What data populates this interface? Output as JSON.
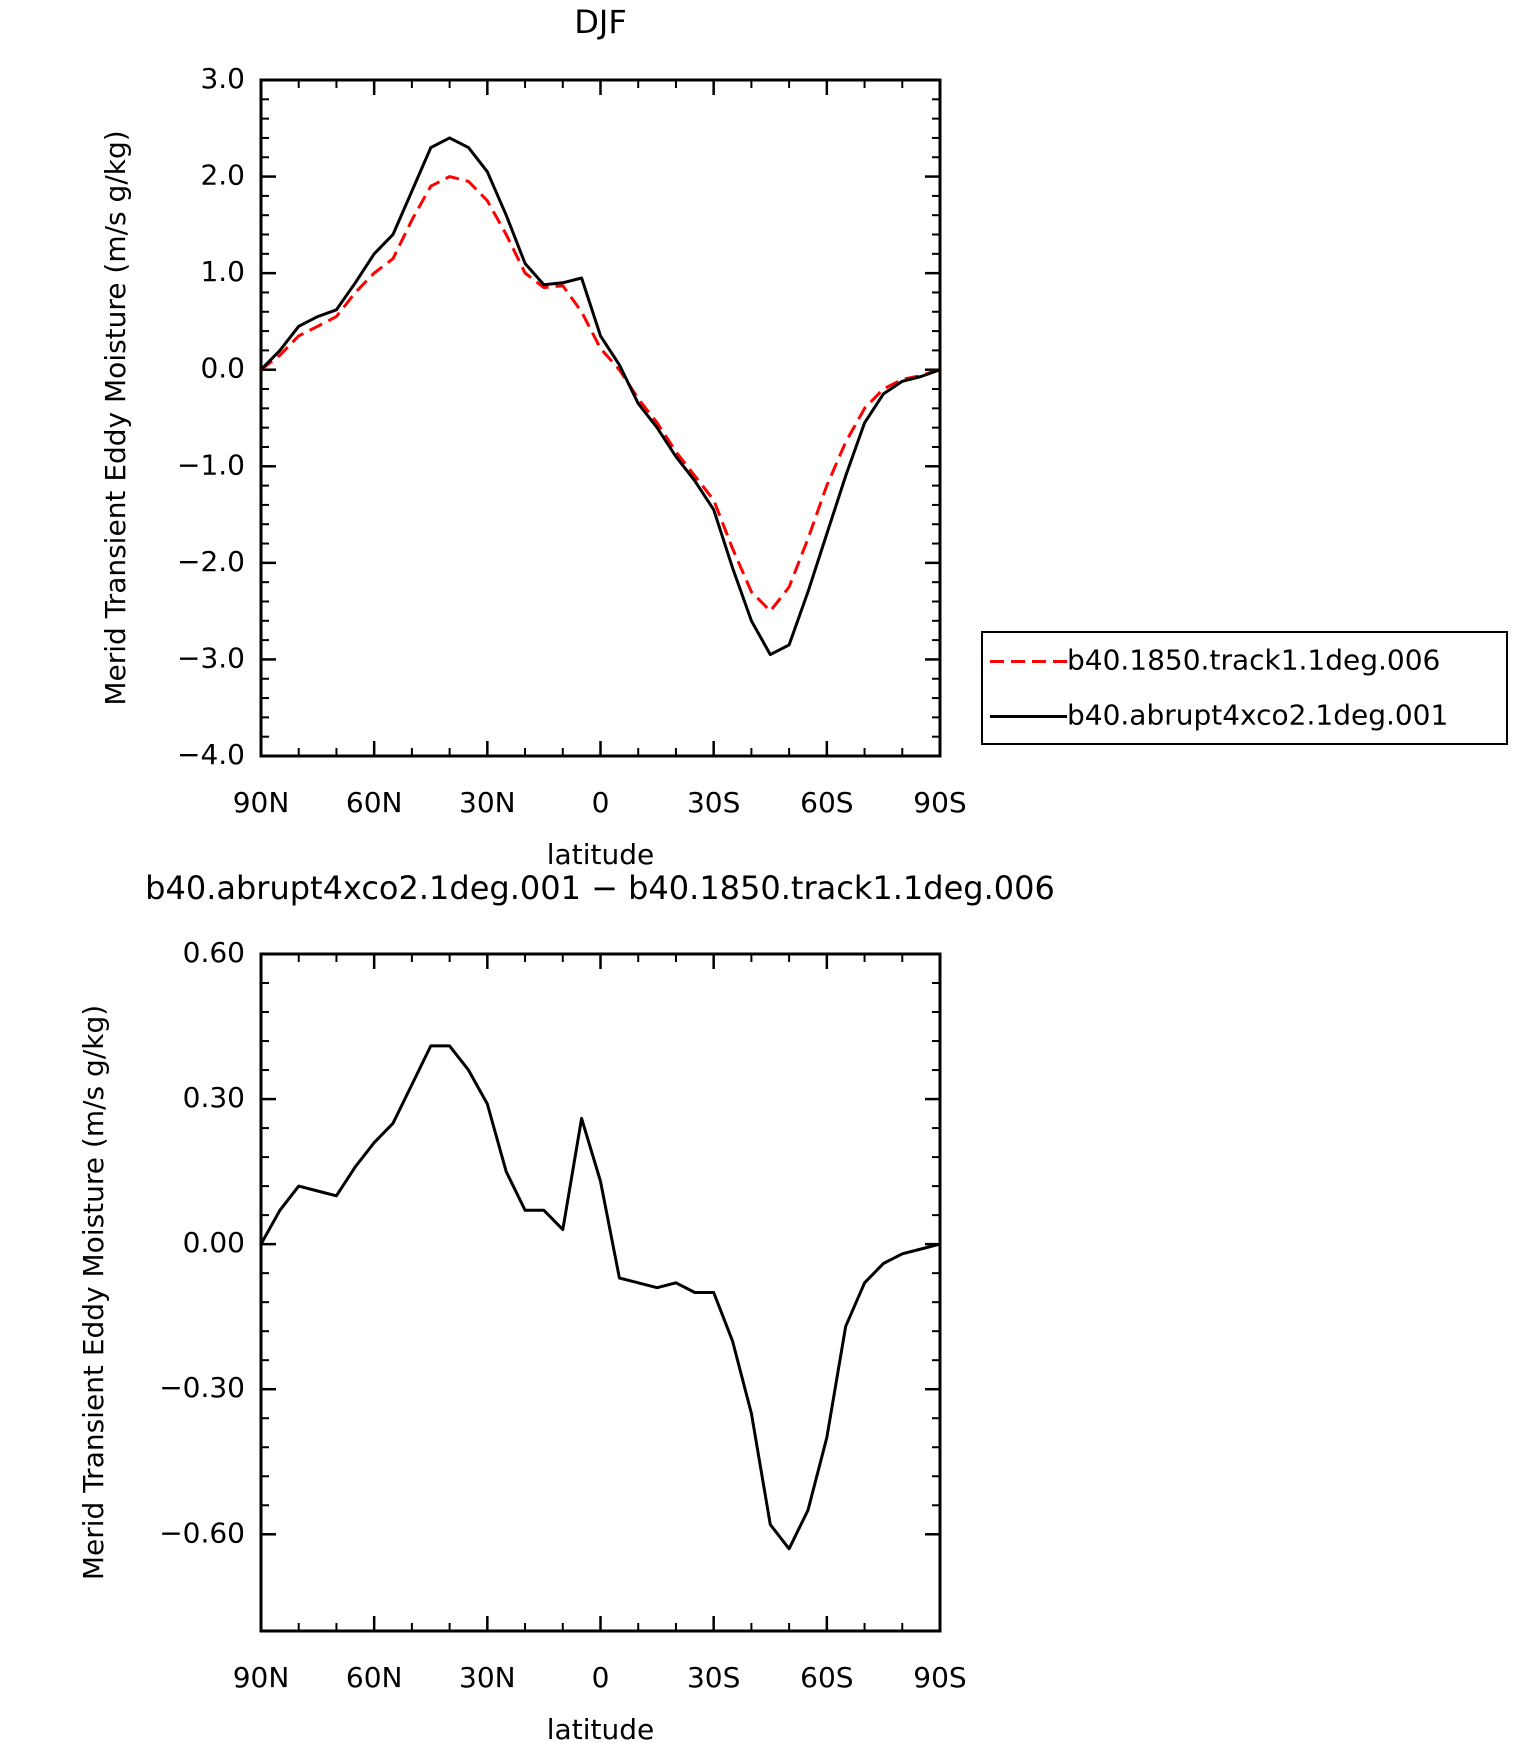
{
  "chart_data": [
    {
      "type": "line",
      "title": "DJF",
      "xlabel": "latitude",
      "ylabel": "Merid Transient Eddy Moisture (m/s g/kg)",
      "x": [
        90,
        85,
        80,
        75,
        70,
        65,
        60,
        55,
        50,
        45,
        40,
        35,
        30,
        25,
        20,
        15,
        10,
        5,
        0,
        -5,
        -10,
        -15,
        -20,
        -25,
        -30,
        -35,
        -40,
        -45,
        -50,
        -55,
        -60,
        -65,
        -70,
        -75,
        -80,
        -85,
        -90
      ],
      "series": [
        {
          "name": "b40.1850.track1.1deg.006",
          "color": "#ff0000",
          "dash": true,
          "values": [
            0,
            0.15,
            0.35,
            0.45,
            0.55,
            0.8,
            1.0,
            1.15,
            1.55,
            1.9,
            2.0,
            1.95,
            1.75,
            1.4,
            1.0,
            0.85,
            0.87,
            0.6,
            0.22,
            0.0,
            -0.3,
            -0.55,
            -0.85,
            -1.1,
            -1.35,
            -1.85,
            -2.3,
            -2.5,
            -2.25,
            -1.75,
            -1.2,
            -0.75,
            -0.4,
            -0.2,
            -0.1,
            -0.06,
            0
          ]
        },
        {
          "name": "b40.abrupt4xco2.1deg.001",
          "color": "#000000",
          "dash": false,
          "values": [
            0,
            0.2,
            0.45,
            0.55,
            0.62,
            0.9,
            1.2,
            1.4,
            1.85,
            2.3,
            2.4,
            2.3,
            2.05,
            1.6,
            1.1,
            0.88,
            0.9,
            0.95,
            0.35,
            0.05,
            -0.35,
            -0.6,
            -0.9,
            -1.15,
            -1.45,
            -2.05,
            -2.6,
            -2.95,
            -2.85,
            -2.3,
            -1.7,
            -1.1,
            -0.55,
            -0.25,
            -0.12,
            -0.07,
            0
          ]
        }
      ],
      "xlim": [
        90,
        -90
      ],
      "xticks": [
        {
          "value": 90,
          "label": "90N"
        },
        {
          "value": 60,
          "label": "60N"
        },
        {
          "value": 30,
          "label": "30N"
        },
        0,
        {
          "value": -30,
          "label": "30S"
        },
        {
          "value": -60,
          "label": "60S"
        },
        {
          "value": -90,
          "label": "90S"
        }
      ],
      "ylim": [
        -4,
        3
      ],
      "yticks": [
        {
          "value": 3,
          "label": "3.0"
        },
        {
          "value": 2,
          "label": "2.0"
        },
        {
          "value": 1,
          "label": "1.0"
        },
        {
          "value": 0,
          "label": "0.0"
        },
        {
          "value": -1,
          "label": "−1.0"
        },
        {
          "value": -2,
          "label": "−2.0"
        },
        {
          "value": -3,
          "label": "−3.0"
        },
        {
          "value": -4,
          "label": "−4.0"
        }
      ],
      "legend": "right"
    },
    {
      "type": "line",
      "title": "b40.abrupt4xco2.1deg.001 − b40.1850.track1.1deg.006",
      "xlabel": "latitude",
      "ylabel": "Merid Transient Eddy Moisture (m/s g/kg)",
      "x": [
        90,
        85,
        80,
        75,
        70,
        65,
        60,
        55,
        50,
        45,
        40,
        35,
        30,
        25,
        20,
        15,
        10,
        5,
        0,
        -5,
        -10,
        -15,
        -20,
        -25,
        -30,
        -35,
        -40,
        -45,
        -50,
        -55,
        -60,
        -65,
        -70,
        -75,
        -80,
        -85,
        -90
      ],
      "series": [
        {
          "color": "#000000",
          "dash": false,
          "values": [
            0,
            0.07,
            0.12,
            0.11,
            0.1,
            0.16,
            0.21,
            0.25,
            0.33,
            0.41,
            0.41,
            0.36,
            0.29,
            0.15,
            0.07,
            0.07,
            0.03,
            0.26,
            0.13,
            -0.07,
            -0.08,
            -0.09,
            -0.08,
            -0.1,
            -0.1,
            -0.2,
            -0.35,
            -0.58,
            -0.63,
            -0.55,
            -0.4,
            -0.17,
            -0.08,
            -0.04,
            -0.02,
            -0.01,
            0
          ]
        }
      ],
      "xlim": [
        90,
        -90
      ],
      "xticks": [
        {
          "value": 90,
          "label": "90N"
        },
        {
          "value": 60,
          "label": "60N"
        },
        {
          "value": 30,
          "label": "30N"
        },
        0,
        {
          "value": -30,
          "label": "30S"
        },
        {
          "value": -60,
          "label": "60S"
        },
        {
          "value": -90,
          "label": "90S"
        }
      ],
      "ylim": [
        -0.8,
        0.6
      ],
      "yticks": [
        {
          "value": 0.6,
          "label": "0.60"
        },
        {
          "value": 0.3,
          "label": "0.30"
        },
        {
          "value": 0,
          "label": "0.00"
        },
        {
          "value": -0.3,
          "label": "−0.30"
        },
        {
          "value": -0.6,
          "label": "−0.60"
        }
      ]
    }
  ]
}
